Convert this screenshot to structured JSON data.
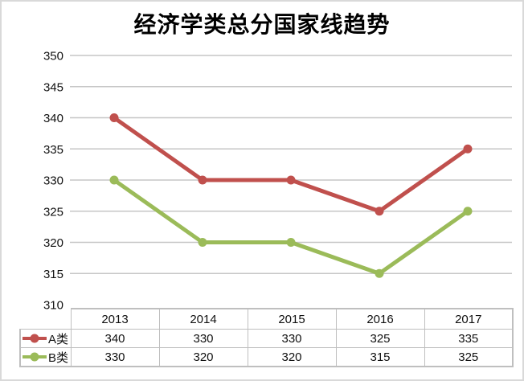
{
  "window": {
    "background": "#ffffff",
    "frame_border_color": "#d9d9d9"
  },
  "chart_data": {
    "type": "line",
    "title": "经济学类总分国家线趋势",
    "categories": [
      "2013",
      "2014",
      "2015",
      "2016",
      "2017"
    ],
    "series": [
      {
        "name": "A类",
        "color": "#c0504d",
        "values": [
          340,
          330,
          330,
          325,
          335
        ]
      },
      {
        "name": "B类",
        "color": "#9bbb59",
        "values": [
          330,
          320,
          320,
          315,
          325
        ]
      }
    ],
    "ylim": [
      310,
      350
    ],
    "ytick_step": 5,
    "yticks": [
      350,
      345,
      340,
      335,
      330,
      325,
      320,
      315,
      310
    ],
    "grid": true,
    "gridline_color": "#c6c6c6",
    "table_border_color": "#bfbfbf",
    "legend_position": "data-table-left",
    "data_table": true,
    "xlabel": "",
    "ylabel": ""
  }
}
